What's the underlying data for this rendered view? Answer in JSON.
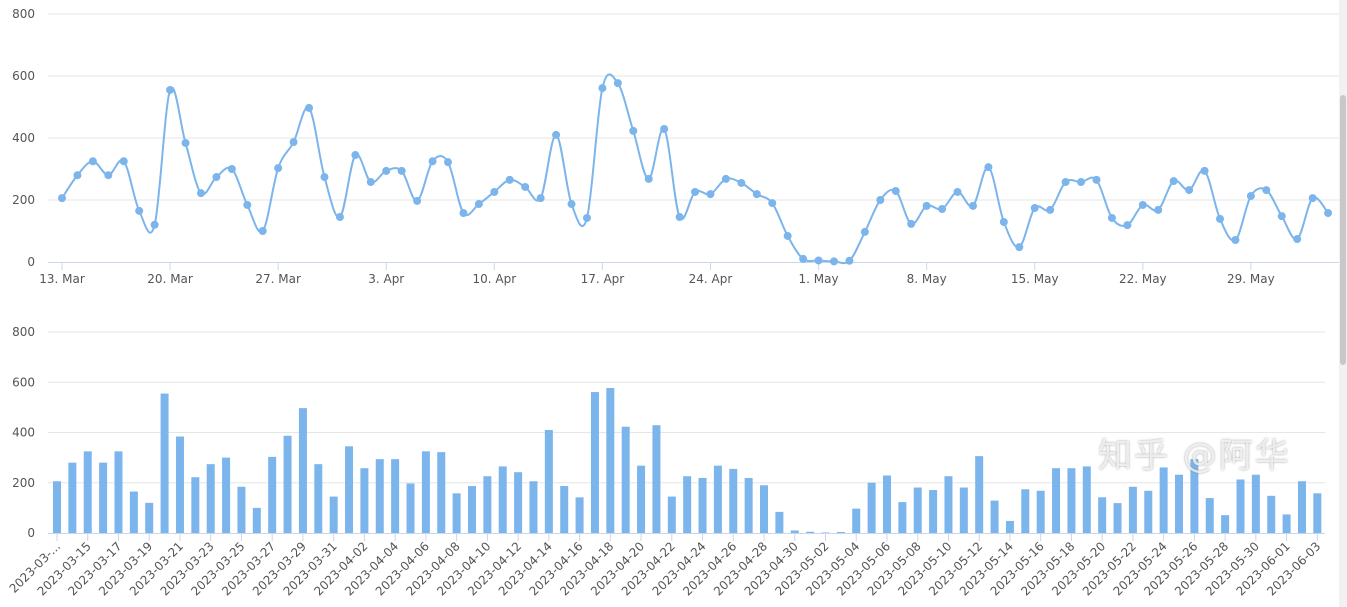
{
  "watermark": "知乎 @阿华",
  "colors": {
    "series": "#7cb5ec",
    "grid": "#e6e6e6",
    "axis": "#ccd6eb"
  },
  "chart_data": [
    {
      "type": "line",
      "smooth": true,
      "markers": true,
      "start_date": "2023-03-13",
      "ylim": [
        0,
        800
      ],
      "yticks": [
        0,
        200,
        400,
        600,
        800
      ],
      "grid": true,
      "xtick_labels": [
        "13. Mar",
        "20. Mar",
        "27. Mar",
        "3. Apr",
        "10. Apr",
        "17. Apr",
        "24. Apr",
        "1. May",
        "8. May",
        "15. May",
        "22. May",
        "29. May"
      ],
      "values": [
        206,
        280,
        325,
        280,
        325,
        165,
        120,
        555,
        384,
        222,
        274,
        300,
        184,
        100,
        303,
        387,
        497,
        274,
        145,
        345,
        258,
        294,
        294,
        197,
        325,
        322,
        158,
        187,
        226,
        265,
        242,
        206,
        410,
        187,
        142,
        561,
        577,
        423,
        268,
        429,
        145,
        226,
        219,
        268,
        255,
        219,
        190,
        84,
        10,
        5,
        2,
        4,
        97,
        200,
        229,
        123,
        181,
        171,
        226,
        181,
        306,
        129,
        48,
        174,
        168,
        258,
        258,
        265,
        142,
        119,
        184,
        168,
        261,
        232,
        294,
        139,
        71,
        213,
        232,
        148,
        74,
        206,
        158
      ]
    },
    {
      "type": "bar",
      "ylim": [
        0,
        800
      ],
      "yticks": [
        0,
        200,
        400,
        600,
        800
      ],
      "grid": true,
      "xtick_labels": [
        "2023-03-...",
        "2023-03-15",
        "2023-03-17",
        "2023-03-19",
        "2023-03-21",
        "2023-03-23",
        "2023-03-25",
        "2023-03-27",
        "2023-03-29",
        "2023-03-31",
        "2023-04-02",
        "2023-04-04",
        "2023-04-06",
        "2023-04-08",
        "2023-04-10",
        "2023-04-12",
        "2023-04-14",
        "2023-04-16",
        "2023-04-18",
        "2023-04-20",
        "2023-04-22",
        "2023-04-24",
        "2023-04-26",
        "2023-04-28",
        "2023-04-30",
        "2023-05-02",
        "2023-05-04",
        "2023-05-06",
        "2023-05-08",
        "2023-05-10",
        "2023-05-12",
        "2023-05-14",
        "2023-05-16",
        "2023-05-18",
        "2023-05-20",
        "2023-05-22",
        "2023-05-24",
        "2023-05-26",
        "2023-05-28",
        "2023-05-30",
        "2023-06-01",
        "2023-06-03"
      ],
      "values": [
        206,
        280,
        325,
        280,
        325,
        165,
        120,
        555,
        384,
        222,
        274,
        300,
        184,
        100,
        303,
        387,
        497,
        274,
        145,
        345,
        258,
        294,
        294,
        197,
        325,
        322,
        158,
        187,
        226,
        265,
        242,
        206,
        410,
        187,
        142,
        561,
        577,
        423,
        268,
        429,
        145,
        226,
        219,
        268,
        255,
        219,
        190,
        84,
        10,
        5,
        2,
        4,
        97,
        200,
        229,
        123,
        181,
        171,
        226,
        181,
        306,
        129,
        48,
        174,
        168,
        258,
        258,
        265,
        142,
        119,
        184,
        168,
        261,
        232,
        294,
        139,
        71,
        213,
        232,
        148,
        74,
        206,
        158
      ]
    }
  ]
}
